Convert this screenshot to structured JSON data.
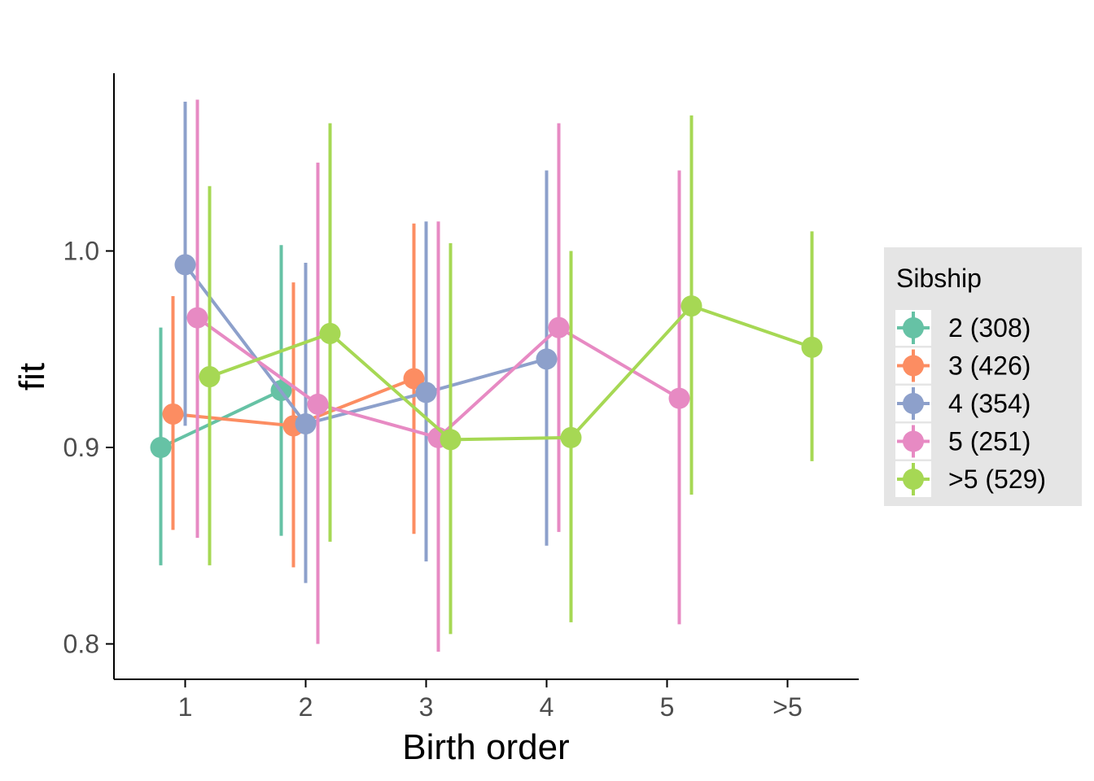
{
  "chart_data": {
    "type": "line",
    "title": "",
    "xlabel": "Birth order",
    "ylabel": "fit",
    "categories": [
      "1",
      "2",
      "3",
      "4",
      "5",
      ">5"
    ],
    "y_ticks": [
      0.8,
      0.9,
      1.0
    ],
    "y_tick_labels": [
      "0.8",
      "0.9",
      "1.0"
    ],
    "ylim": [
      0.782,
      1.09
    ],
    "grid": false,
    "error_bars": true,
    "legend": {
      "title": "Sibship",
      "position": "right"
    },
    "series": [
      {
        "name": "2 (308)",
        "color": "#66C2A5",
        "points": [
          {
            "x": "1",
            "y": 0.9,
            "lo": 0.84,
            "hi": 0.961
          },
          {
            "x": "2",
            "y": 0.929,
            "lo": 0.855,
            "hi": 1.003
          }
        ]
      },
      {
        "name": "3 (426)",
        "color": "#FC8D62",
        "points": [
          {
            "x": "1",
            "y": 0.917,
            "lo": 0.858,
            "hi": 0.977
          },
          {
            "x": "2",
            "y": 0.911,
            "lo": 0.839,
            "hi": 0.984
          },
          {
            "x": "3",
            "y": 0.935,
            "lo": 0.856,
            "hi": 1.014
          }
        ]
      },
      {
        "name": "4 (354)",
        "color": "#8DA0CB",
        "points": [
          {
            "x": "1",
            "y": 0.993,
            "lo": 0.911,
            "hi": 1.076
          },
          {
            "x": "2",
            "y": 0.912,
            "lo": 0.831,
            "hi": 0.994
          },
          {
            "x": "3",
            "y": 0.928,
            "lo": 0.842,
            "hi": 1.015
          },
          {
            "x": "4",
            "y": 0.945,
            "lo": 0.85,
            "hi": 1.041
          }
        ]
      },
      {
        "name": "5 (251)",
        "color": "#E78AC3",
        "points": [
          {
            "x": "1",
            "y": 0.966,
            "lo": 0.854,
            "hi": 1.077
          },
          {
            "x": "2",
            "y": 0.922,
            "lo": 0.8,
            "hi": 1.045
          },
          {
            "x": "3",
            "y": 0.905,
            "lo": 0.796,
            "hi": 1.015
          },
          {
            "x": "4",
            "y": 0.961,
            "lo": 0.857,
            "hi": 1.065
          },
          {
            "x": "5",
            "y": 0.925,
            "lo": 0.81,
            "hi": 1.041
          }
        ]
      },
      {
        "name": ">5 (529)",
        "color": "#A6D854",
        "points": [
          {
            "x": "1",
            "y": 0.936,
            "lo": 0.84,
            "hi": 1.033
          },
          {
            "x": "2",
            "y": 0.958,
            "lo": 0.852,
            "hi": 1.065
          },
          {
            "x": "3",
            "y": 0.904,
            "lo": 0.805,
            "hi": 1.004
          },
          {
            "x": "4",
            "y": 0.905,
            "lo": 0.811,
            "hi": 1.0
          },
          {
            "x": "5",
            "y": 0.972,
            "lo": 0.876,
            "hi": 1.069
          },
          {
            "x": ">5",
            "y": 0.951,
            "lo": 0.893,
            "hi": 1.01
          }
        ]
      }
    ]
  }
}
